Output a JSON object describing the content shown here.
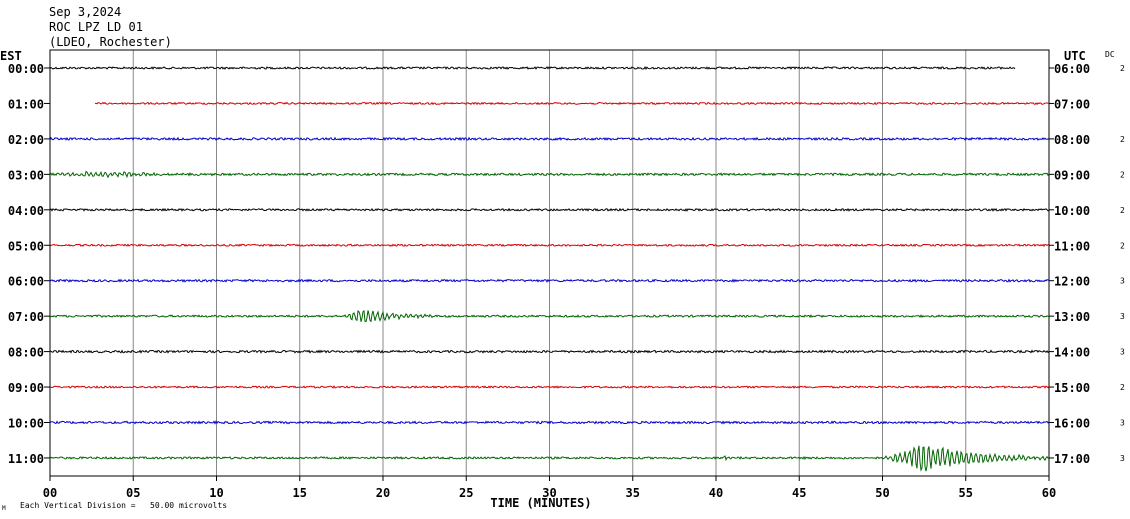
{
  "header": {
    "date": "Sep 3,2024",
    "station": "ROC LPZ LD 01",
    "network": "(LDEO, Rochester)"
  },
  "axes": {
    "left_label": "EST",
    "right_label": "UTC",
    "dc_label": "DC",
    "xlabel": "TIME (MINUTES)",
    "x_ticks": [
      "00",
      "05",
      "10",
      "15",
      "20",
      "25",
      "30",
      "35",
      "40",
      "45",
      "50",
      "55",
      "60"
    ],
    "scale_note": "Each Vertical Division =   50.00 microvolts",
    "corner_mark": "M"
  },
  "chart_data": {
    "type": "line",
    "title": "ROC LPZ LD 01",
    "xlabel": "TIME (MINUTES)",
    "ylabel": "",
    "xlim": [
      0,
      60
    ],
    "x_tick_step": 5,
    "grid": true,
    "colors": [
      "#000000",
      "#d40000",
      "#0000c8",
      "#006400"
    ],
    "rows": [
      {
        "est": "00:00",
        "utc": "06:00",
        "dc": "2",
        "color": "#000000",
        "start_min": 0.0,
        "end_min": 58.0,
        "noise": 1.0,
        "events": []
      },
      {
        "est": "01:00",
        "utc": "07:00",
        "dc": "",
        "color": "#d40000",
        "start_min": 2.7,
        "end_min": 60.0,
        "noise": 0.9,
        "events": []
      },
      {
        "est": "02:00",
        "utc": "08:00",
        "dc": "2",
        "color": "#0000c8",
        "start_min": 0.0,
        "end_min": 60.0,
        "noise": 1.1,
        "events": []
      },
      {
        "est": "03:00",
        "utc": "09:00",
        "dc": "2",
        "color": "#006400",
        "start_min": 0.0,
        "end_min": 60.0,
        "noise": 1.1,
        "events": [
          {
            "start_min": 0.0,
            "end_min": 10.5,
            "amp": 2.5
          }
        ]
      },
      {
        "est": "04:00",
        "utc": "10:00",
        "dc": "2",
        "color": "#000000",
        "start_min": 0.0,
        "end_min": 60.0,
        "noise": 1.0,
        "events": []
      },
      {
        "est": "05:00",
        "utc": "11:00",
        "dc": "2",
        "color": "#d40000",
        "start_min": 0.0,
        "end_min": 60.0,
        "noise": 0.9,
        "events": []
      },
      {
        "est": "06:00",
        "utc": "12:00",
        "dc": "3",
        "color": "#0000c8",
        "start_min": 0.0,
        "end_min": 60.0,
        "noise": 1.1,
        "events": []
      },
      {
        "est": "07:00",
        "utc": "13:00",
        "dc": "3",
        "color": "#006400",
        "start_min": 0.0,
        "end_min": 60.0,
        "noise": 1.0,
        "events": [
          {
            "start_min": 17.5,
            "end_min": 23.0,
            "amp": 6.5
          }
        ]
      },
      {
        "est": "08:00",
        "utc": "14:00",
        "dc": "3",
        "color": "#000000",
        "start_min": 0.0,
        "end_min": 60.0,
        "noise": 1.1,
        "events": []
      },
      {
        "est": "09:00",
        "utc": "15:00",
        "dc": "2",
        "color": "#d40000",
        "start_min": 0.0,
        "end_min": 60.0,
        "noise": 0.9,
        "events": []
      },
      {
        "est": "10:00",
        "utc": "16:00",
        "dc": "3",
        "color": "#0000c8",
        "start_min": 0.0,
        "end_min": 60.0,
        "noise": 1.1,
        "events": []
      },
      {
        "est": "11:00",
        "utc": "17:00",
        "dc": "3",
        "color": "#006400",
        "start_min": 0.0,
        "end_min": 60.0,
        "noise": 1.0,
        "events": [
          {
            "start_min": 40.3,
            "end_min": 41.5,
            "amp": 2.5
          },
          {
            "start_min": 50.0,
            "end_min": 60.0,
            "amp": 13
          }
        ]
      }
    ]
  }
}
